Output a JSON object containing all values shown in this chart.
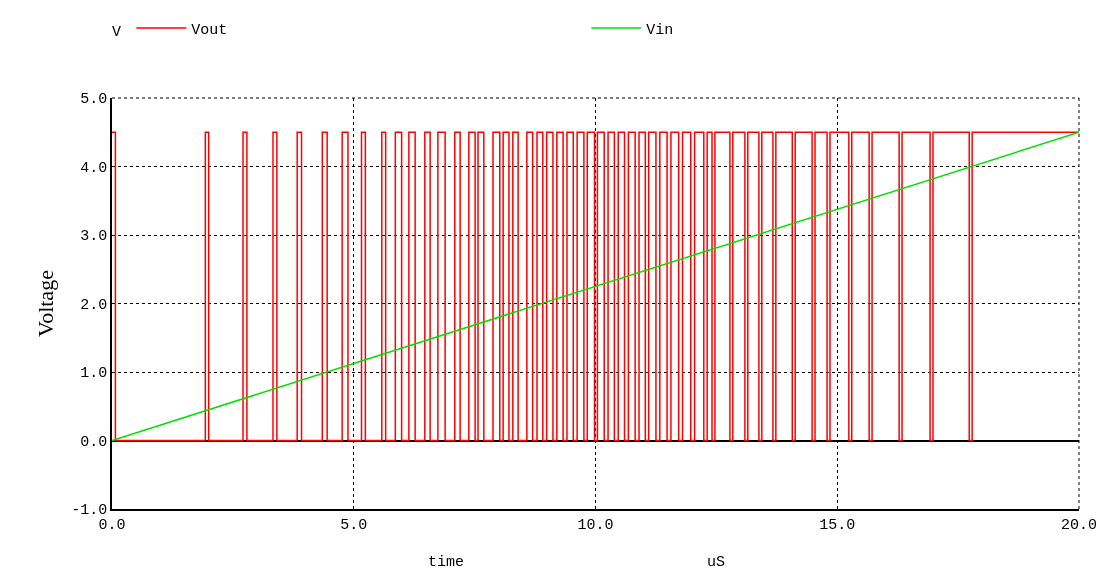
{
  "chart_data": {
    "type": "line",
    "xlabel": "time",
    "ylabel": "Voltage",
    "annotations": [
      "V",
      "uS"
    ],
    "xlim": [
      0,
      20
    ],
    "xticks": [
      {
        "value": 0,
        "label": "0.0"
      },
      {
        "value": 5,
        "label": "5.0"
      },
      {
        "value": 10,
        "label": "10.0"
      },
      {
        "value": 15,
        "label": "15.0"
      },
      {
        "value": 20,
        "label": "20.0"
      }
    ],
    "ylim": [
      -1,
      5
    ],
    "yticks": [
      {
        "value": -1,
        "label": "-1.0"
      },
      {
        "value": 0,
        "label": "0.0"
      },
      {
        "value": 1,
        "label": "1.0"
      },
      {
        "value": 2,
        "label": "2.0"
      },
      {
        "value": 3,
        "label": "3.0"
      },
      {
        "value": 4,
        "label": "4.0"
      },
      {
        "value": 5,
        "label": "5.0"
      }
    ],
    "grid": true,
    "legend": "top left",
    "marker": "none",
    "line_style": "solid",
    "series": [
      {
        "name": "Vout",
        "type": "step",
        "color": "#ff0000",
        "x": [
          0,
          0.07,
          1.93,
          2,
          2.71,
          2.79,
          3.33,
          3.41,
          3.83,
          3.92,
          4.35,
          4.45,
          4.76,
          4.88,
          5.16,
          5.24,
          5.58,
          5.66,
          5.86,
          5.99,
          6.14,
          6.27,
          6.47,
          6.58,
          6.74,
          6.89,
          7.09,
          7.2,
          7.38,
          7.51,
          7.57,
          7.69,
          7.88,
          8.02,
          8.09,
          8.21,
          8.29,
          8.4,
          8.58,
          8.7,
          8.79,
          8.91,
          8.99,
          9.12,
          9.2,
          9.33,
          9.41,
          9.54,
          9.62,
          9.76,
          9.83,
          9.98,
          10.04,
          10.18,
          10.26,
          10.39,
          10.47,
          10.6,
          10.68,
          10.82,
          10.9,
          11.03,
          11.1,
          11.25,
          11.33,
          11.48,
          11.56,
          11.72,
          11.8,
          11.97,
          12.05,
          12.24,
          12.31,
          12.41,
          12.47,
          12.78,
          12.84,
          13.09,
          13.15,
          13.38,
          13.44,
          13.67,
          13.73,
          14.07,
          14.13,
          14.48,
          14.54,
          14.79,
          14.85,
          15.24,
          15.3,
          15.66,
          15.72,
          16.28,
          16.34,
          16.92,
          16.98,
          17.73,
          17.79,
          20
        ],
        "values": [
          4.5,
          0,
          4.5,
          0,
          4.5,
          0,
          4.5,
          0,
          4.5,
          0,
          4.5,
          0,
          4.5,
          0,
          4.5,
          0,
          4.5,
          0,
          4.5,
          0,
          4.5,
          0,
          4.5,
          0,
          4.5,
          0,
          4.5,
          0,
          4.5,
          0,
          4.5,
          0,
          4.5,
          0,
          4.5,
          0,
          4.5,
          0,
          4.5,
          0,
          4.5,
          0,
          4.5,
          0,
          4.5,
          0,
          4.5,
          0,
          4.5,
          0,
          4.5,
          0,
          4.5,
          0,
          4.5,
          0,
          4.5,
          0,
          4.5,
          0,
          4.5,
          0,
          4.5,
          0,
          4.5,
          0,
          4.5,
          0,
          4.5,
          0,
          4.5,
          0,
          4.5,
          0,
          4.5,
          0,
          4.5,
          0,
          4.5,
          0,
          4.5,
          0,
          4.5,
          0,
          4.5,
          0,
          4.5,
          0,
          4.5,
          0,
          4.5,
          0,
          4.5,
          0,
          4.5,
          0,
          4.5,
          0,
          4.5,
          4.5
        ]
      },
      {
        "name": "Vin",
        "color": "#00e000",
        "x": [
          0,
          20
        ],
        "values": [
          0,
          4.5
        ]
      }
    ]
  }
}
